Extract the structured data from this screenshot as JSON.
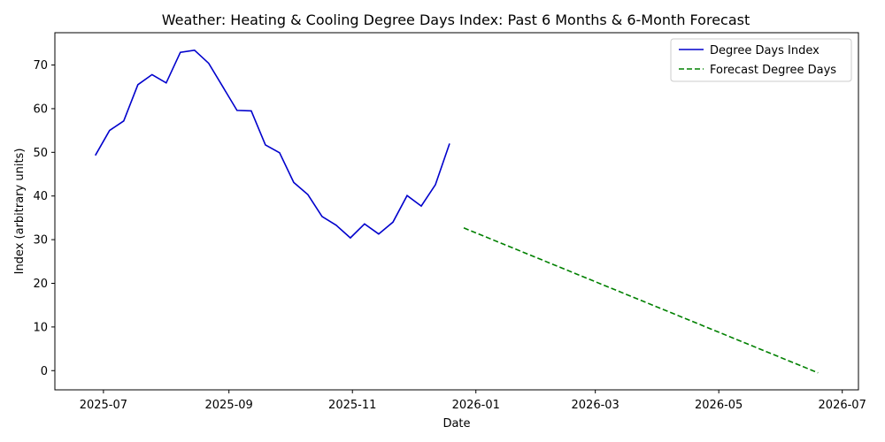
{
  "chart_data": {
    "type": "line",
    "title": "Weather: Heating & Cooling Degree Days Index: Past 6 Months & 6-Month Forecast",
    "xlabel": "Date",
    "ylabel": "Index (arbitrary units)",
    "x_ticks": [
      "2025-07",
      "2025-09",
      "2025-11",
      "2026-01",
      "2026-03",
      "2026-05",
      "2026-07"
    ],
    "y_ticks": [
      0,
      10,
      20,
      30,
      40,
      50,
      60,
      70
    ],
    "xlim": [
      "2025-06-07",
      "2026-07-09"
    ],
    "ylim": [
      -4.4,
      77.4
    ],
    "legend_position": "top-right",
    "grid": false,
    "series": [
      {
        "name": "Degree Days Index",
        "color": "#0000cc",
        "style": "solid",
        "x": [
          "2025-06-27",
          "2025-07-04",
          "2025-07-11",
          "2025-07-18",
          "2025-07-25",
          "2025-08-01",
          "2025-08-08",
          "2025-08-15",
          "2025-08-22",
          "2025-08-29",
          "2025-09-05",
          "2025-09-12",
          "2025-09-19",
          "2025-09-26",
          "2025-10-03",
          "2025-10-10",
          "2025-10-17",
          "2025-10-24",
          "2025-10-31",
          "2025-11-07",
          "2025-11-14",
          "2025-11-21",
          "2025-11-28",
          "2025-12-05",
          "2025-12-12",
          "2025-12-19"
        ],
        "y": [
          49.3,
          55.0,
          57.2,
          65.5,
          67.8,
          65.9,
          72.9,
          73.4,
          70.4,
          65.0,
          59.6,
          59.5,
          51.7,
          49.9,
          43.1,
          40.3,
          35.3,
          33.3,
          30.4,
          33.6,
          31.3,
          34.0,
          40.1,
          37.7,
          42.6,
          52.0
        ]
      },
      {
        "name": "Forecast Degree Days",
        "color": "#008000",
        "style": "dashed",
        "x": [
          "2025-12-26",
          "2026-06-19"
        ],
        "y": [
          32.7,
          -0.5
        ]
      }
    ]
  }
}
